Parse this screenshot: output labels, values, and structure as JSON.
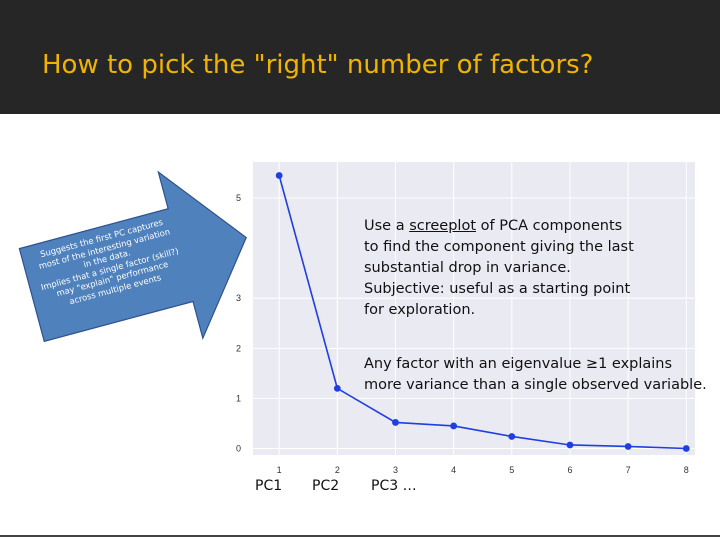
{
  "slide": {
    "title": "How to pick the \"right\" number of factors?"
  },
  "callout": {
    "lines": [
      "Suggests the first PC captures",
      "most of the interesting variation",
      "in the data.",
      "Implies that a single factor  (skill?)",
      "may \"explain\"  performance",
      "across multiple events"
    ]
  },
  "note1": {
    "prefix": "Use a ",
    "underlined": "screeplot",
    "suffix": " of PCA components",
    "line2": "to find the component giving the last",
    "line3": "substantial drop in variance.",
    "line4": "Subjective: useful as a starting point",
    "line5": "for exploration."
  },
  "note2": {
    "line1": "Any factor with an eigenvalue ≥1 explains",
    "line2": "more variance than a single observed variable."
  },
  "pc_labels": {
    "pc1": "PC1",
    "pc2": "PC2",
    "pc3": "PC3 …"
  },
  "colors": {
    "line": "#1f3fe0",
    "arrow_fill": "#4f81bd",
    "arrow_stroke": "#2f528f",
    "title": "#f0b400",
    "header_bg": "#262626",
    "plot_bg": "#eaeaf2"
  },
  "chart_data": {
    "type": "line",
    "title": "",
    "xlabel": "",
    "ylabel": "",
    "x": [
      1,
      2,
      3,
      4,
      5,
      6,
      7,
      8
    ],
    "series": [
      {
        "values": [
          5.45,
          1.2,
          0.52,
          0.45,
          0.24,
          0.07,
          0.04,
          0.0
        ]
      }
    ],
    "xticks": [
      1,
      2,
      3,
      4,
      5,
      6,
      7,
      8
    ],
    "yticks": [
      0,
      1,
      2,
      3,
      5
    ],
    "xlim": [
      0.55,
      8.15
    ],
    "ylim": [
      -0.13,
      5.72
    ],
    "grid": true
  }
}
